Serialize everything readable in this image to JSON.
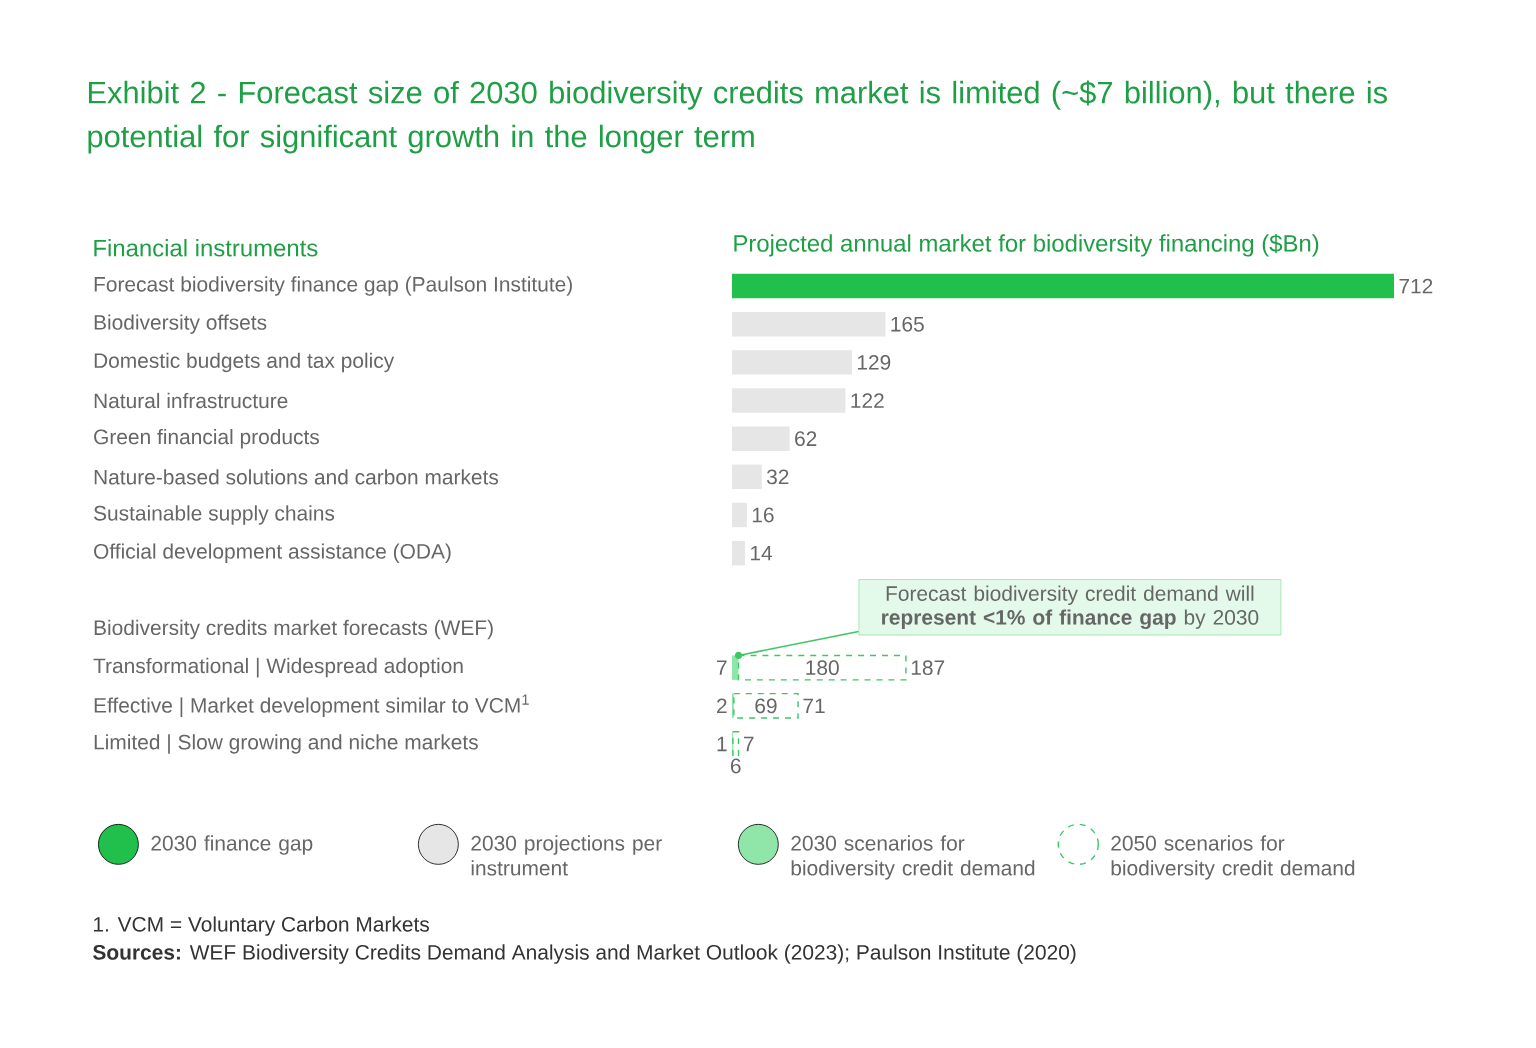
{
  "chart_data": {
    "type": "bar",
    "orientation": "horizontal",
    "stacked": true,
    "title": "Exhibit 2 -  Forecast size of 2030 biodiversity credits market is limited (~$7 billion), but there is potential for significant growth in the longer term",
    "ylabel": "Financial instruments",
    "xlabel": "Projected annual market for biodiversity financing ($Bn)",
    "categories": [
      "Forecast biodiversity finance gap (Paulson Institute)",
      "Biodiversity offsets",
      "Domestic budgets and tax policy",
      "Natural infrastructure",
      "Green financial products",
      "Nature-based solutions and carbon markets",
      "Sustainable supply chains",
      "Official development assistance (ODA)",
      null,
      "Biodiversity credits market forecasts (WEF)",
      "Transformational | Widespread adoption",
      "Effective | Market development similar to VCM$^{1}$",
      "Limited | Slow growing and niche markets"
    ],
    "series": [
      {
        "name": "2030 finance gap",
        "color": "#21bf4b",
        "values": [
          712,
          null,
          null,
          null,
          null,
          null,
          null,
          null,
          null,
          null,
          null,
          null,
          null
        ]
      },
      {
        "name": "2030 projections per instrument",
        "color": "#e6e6e6",
        "values": [
          null,
          165,
          129,
          122,
          62,
          32,
          16,
          14,
          null,
          null,
          null,
          null,
          null
        ]
      },
      {
        "name": "2030 scenarios for biodiversity credit demand",
        "color": "#90e6a8",
        "values": [
          null,
          null,
          null,
          null,
          null,
          null,
          null,
          null,
          null,
          null,
          7,
          2,
          1
        ]
      },
      {
        "name": "2050 scenarios for biodiversity credit demand",
        "color": "#3cc763",
        "line_style": "dashed",
        "values": [
          null,
          null,
          null,
          null,
          null,
          null,
          null,
          null,
          null,
          null,
          180,
          69,
          6
        ]
      }
    ],
    "totals": [
      null,
      null,
      null,
      null,
      null,
      null,
      null,
      null,
      null,
      null,
      "187",
      "71",
      "7"
    ],
    "data_labels": true,
    "tick_labels": "y",
    "legend": "bottom",
    "annotations": [
      {
        "text": "Forecast biodiversity credit demand will **represent <1% of finance gap** by 2030",
        "x": 7,
        "y": "Transformational | Widespread adoption"
      },
      "1. VCM = Voluntary Carbon Markets",
      "**Sources:** WEF Biodiversity Credits Demand Analysis and Market Outlook (2023); Paulson Institute (2020)"
    ]
  }
}
